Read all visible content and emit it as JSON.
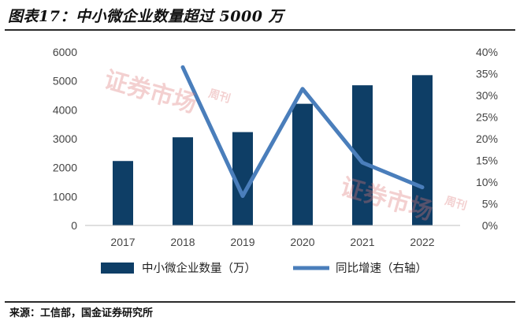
{
  "figure": {
    "title": "图表17：中小微企业数量超过 5000 万",
    "source": "来源：工信部，国金证券研究所"
  },
  "watermark": {
    "text": "证券市场",
    "side_text": "周刊",
    "color": "#dc7878"
  },
  "chart_data": {
    "type": "bar",
    "categories": [
      "2017",
      "2018",
      "2019",
      "2020",
      "2021",
      "2022"
    ],
    "series": [
      {
        "name": "中小微企业数量（万）",
        "type": "bar",
        "axis": "left",
        "values": [
          2230,
          3050,
          3230,
          4210,
          4850,
          5200
        ],
        "color": "#0e3e66"
      },
      {
        "name": "同比增速（右轴）",
        "type": "line",
        "axis": "right",
        "values": [
          null,
          0.365,
          0.068,
          0.315,
          0.145,
          0.088
        ],
        "color": "#4a7ebb"
      }
    ],
    "y_left": {
      "min": 0,
      "max": 6000,
      "ticks": [
        "0",
        "1000",
        "2000",
        "3000",
        "4000",
        "5000",
        "6000"
      ]
    },
    "y_right": {
      "min": 0,
      "max": 0.4,
      "ticks": [
        "0%",
        "5%",
        "10%",
        "15%",
        "20%",
        "25%",
        "30%",
        "35%",
        "40%"
      ]
    },
    "legend": {
      "position": "bottom"
    },
    "grid": false
  }
}
